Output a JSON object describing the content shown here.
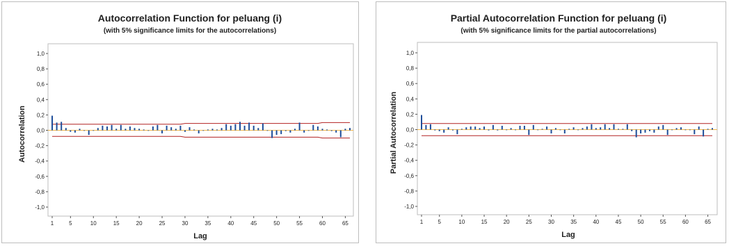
{
  "colors": {
    "bar": "#1f4e9a",
    "limit": "#b22222",
    "zero": "#f2b84b",
    "frame": "#bdbdbd"
  },
  "chart_data": [
    {
      "type": "bar",
      "title": "Autocorrelation Function for peluang (i)",
      "subtitle": "(with 5% significance limits for the autocorrelations)",
      "xlabel": "Lag",
      "ylabel": "Autocorrelation",
      "ylim": [
        -1.0,
        1.0
      ],
      "xlim": [
        1,
        66
      ],
      "y_ticks": [
        "-1,0",
        "-0,8",
        "-0,6",
        "-0,4",
        "-0,2",
        "0,0",
        "0,2",
        "0,4",
        "0,6",
        "0,8",
        "1,0"
      ],
      "x_ticks": [
        "1",
        "5",
        "10",
        "15",
        "20",
        "25",
        "30",
        "35",
        "40",
        "45",
        "50",
        "55",
        "60",
        "65"
      ],
      "lags": [
        1,
        2,
        3,
        4,
        5,
        6,
        7,
        8,
        9,
        10,
        11,
        12,
        13,
        14,
        15,
        16,
        17,
        18,
        19,
        20,
        21,
        22,
        23,
        24,
        25,
        26,
        27,
        28,
        29,
        30,
        31,
        32,
        33,
        34,
        35,
        36,
        37,
        38,
        39,
        40,
        41,
        42,
        43,
        44,
        45,
        46,
        47,
        48,
        49,
        50,
        51,
        52,
        53,
        54,
        55,
        56,
        57,
        58,
        59,
        60,
        61,
        62,
        63,
        64,
        65,
        66
      ],
      "values": [
        0.19,
        0.1,
        0.11,
        0.03,
        -0.02,
        -0.03,
        0.02,
        0.0,
        -0.06,
        0.0,
        0.03,
        0.06,
        0.05,
        0.07,
        0.02,
        0.07,
        0.02,
        0.05,
        0.03,
        0.02,
        0.01,
        0.0,
        0.05,
        0.07,
        -0.04,
        0.06,
        0.04,
        0.02,
        0.06,
        -0.02,
        0.04,
        0.01,
        -0.04,
        0.0,
        0.01,
        0.02,
        0.01,
        0.03,
        0.08,
        0.06,
        0.08,
        0.11,
        0.06,
        0.1,
        0.06,
        0.03,
        0.09,
        0.0,
        -0.1,
        -0.06,
        -0.05,
        -0.01,
        -0.03,
        0.02,
        0.1,
        -0.03,
        0.0,
        0.07,
        0.05,
        0.02,
        0.01,
        -0.01,
        -0.03,
        -0.09,
        0.02,
        0.03
      ],
      "upper_limit": [
        0.08,
        0.08,
        0.08,
        0.08,
        0.08,
        0.08,
        0.08,
        0.08,
        0.08,
        0.08,
        0.08,
        0.08,
        0.08,
        0.08,
        0.08,
        0.08,
        0.08,
        0.08,
        0.08,
        0.08,
        0.08,
        0.08,
        0.08,
        0.08,
        0.08,
        0.08,
        0.08,
        0.08,
        0.08,
        0.09,
        0.09,
        0.09,
        0.09,
        0.09,
        0.09,
        0.09,
        0.09,
        0.09,
        0.09,
        0.09,
        0.09,
        0.09,
        0.09,
        0.09,
        0.09,
        0.09,
        0.09,
        0.09,
        0.09,
        0.09,
        0.09,
        0.09,
        0.09,
        0.09,
        0.09,
        0.09,
        0.09,
        0.09,
        0.09,
        0.1,
        0.1,
        0.1,
        0.1,
        0.1,
        0.1,
        0.1
      ],
      "lower_limit": [
        -0.08,
        -0.08,
        -0.08,
        -0.08,
        -0.08,
        -0.08,
        -0.08,
        -0.08,
        -0.08,
        -0.08,
        -0.08,
        -0.08,
        -0.08,
        -0.08,
        -0.08,
        -0.08,
        -0.08,
        -0.08,
        -0.08,
        -0.08,
        -0.08,
        -0.08,
        -0.08,
        -0.08,
        -0.08,
        -0.08,
        -0.08,
        -0.08,
        -0.08,
        -0.09,
        -0.09,
        -0.09,
        -0.09,
        -0.09,
        -0.09,
        -0.09,
        -0.09,
        -0.09,
        -0.09,
        -0.09,
        -0.09,
        -0.09,
        -0.09,
        -0.09,
        -0.09,
        -0.09,
        -0.09,
        -0.09,
        -0.09,
        -0.09,
        -0.09,
        -0.09,
        -0.09,
        -0.09,
        -0.09,
        -0.09,
        -0.09,
        -0.09,
        -0.09,
        -0.1,
        -0.1,
        -0.1,
        -0.1,
        -0.1,
        -0.1,
        -0.1
      ],
      "grid": false,
      "legend": "none"
    },
    {
      "type": "bar",
      "title": "Partial Autocorrelation Function for peluang (i)",
      "subtitle": "(with 5% significance limits for the partial autocorrelations)",
      "xlabel": "Lag",
      "ylabel": "Partial Autocorrelation",
      "ylim": [
        -1.0,
        1.0
      ],
      "xlim": [
        1,
        66
      ],
      "y_ticks": [
        "-1,0",
        "-0,8",
        "-0,6",
        "-0,4",
        "-0,2",
        "0,0",
        "0,2",
        "0,4",
        "0,6",
        "0,8",
        "1,0"
      ],
      "x_ticks": [
        "1",
        "5",
        "10",
        "15",
        "20",
        "25",
        "30",
        "35",
        "40",
        "45",
        "50",
        "55",
        "60",
        "65"
      ],
      "lags": [
        1,
        2,
        3,
        4,
        5,
        6,
        7,
        8,
        9,
        10,
        11,
        12,
        13,
        14,
        15,
        16,
        17,
        18,
        19,
        20,
        21,
        22,
        23,
        24,
        25,
        26,
        27,
        28,
        29,
        30,
        31,
        32,
        33,
        34,
        35,
        36,
        37,
        38,
        39,
        40,
        41,
        42,
        43,
        44,
        45,
        46,
        47,
        48,
        49,
        50,
        51,
        52,
        53,
        54,
        55,
        56,
        57,
        58,
        59,
        60,
        61,
        62,
        63,
        64,
        65,
        66
      ],
      "values": [
        0.19,
        0.06,
        0.07,
        -0.01,
        -0.02,
        -0.04,
        0.03,
        -0.01,
        -0.06,
        0.01,
        0.03,
        0.04,
        0.04,
        0.02,
        0.04,
        -0.01,
        0.06,
        -0.01,
        0.05,
        0.0,
        0.02,
        0.0,
        0.05,
        0.05,
        -0.07,
        0.06,
        0.0,
        0.01,
        0.04,
        -0.05,
        0.02,
        0.0,
        -0.05,
        0.01,
        0.03,
        0.0,
        0.02,
        0.04,
        0.07,
        0.02,
        0.03,
        0.07,
        0.02,
        0.07,
        0.01,
        0.01,
        0.07,
        -0.02,
        -0.1,
        -0.05,
        -0.04,
        -0.02,
        -0.04,
        0.04,
        0.06,
        -0.07,
        0.0,
        0.02,
        0.03,
        0.0,
        0.0,
        -0.06,
        0.04,
        -0.09,
        0.01,
        0.02
      ],
      "upper_limit": [
        0.08,
        0.08,
        0.08,
        0.08,
        0.08,
        0.08,
        0.08,
        0.08,
        0.08,
        0.08,
        0.08,
        0.08,
        0.08,
        0.08,
        0.08,
        0.08,
        0.08,
        0.08,
        0.08,
        0.08,
        0.08,
        0.08,
        0.08,
        0.08,
        0.08,
        0.08,
        0.08,
        0.08,
        0.08,
        0.08,
        0.08,
        0.08,
        0.08,
        0.08,
        0.08,
        0.08,
        0.08,
        0.08,
        0.08,
        0.08,
        0.08,
        0.08,
        0.08,
        0.08,
        0.08,
        0.08,
        0.08,
        0.08,
        0.08,
        0.08,
        0.08,
        0.08,
        0.08,
        0.08,
        0.08,
        0.08,
        0.08,
        0.08,
        0.08,
        0.08,
        0.08,
        0.08,
        0.08,
        0.08,
        0.08,
        0.08
      ],
      "lower_limit": [
        -0.08,
        -0.08,
        -0.08,
        -0.08,
        -0.08,
        -0.08,
        -0.08,
        -0.08,
        -0.08,
        -0.08,
        -0.08,
        -0.08,
        -0.08,
        -0.08,
        -0.08,
        -0.08,
        -0.08,
        -0.08,
        -0.08,
        -0.08,
        -0.08,
        -0.08,
        -0.08,
        -0.08,
        -0.08,
        -0.08,
        -0.08,
        -0.08,
        -0.08,
        -0.08,
        -0.08,
        -0.08,
        -0.08,
        -0.08,
        -0.08,
        -0.08,
        -0.08,
        -0.08,
        -0.08,
        -0.08,
        -0.08,
        -0.08,
        -0.08,
        -0.08,
        -0.08,
        -0.08,
        -0.08,
        -0.08,
        -0.08,
        -0.08,
        -0.08,
        -0.08,
        -0.08,
        -0.08,
        -0.08,
        -0.08,
        -0.08,
        -0.08,
        -0.08,
        -0.08,
        -0.08,
        -0.08,
        -0.08,
        -0.08,
        -0.08,
        -0.08
      ],
      "grid": false,
      "legend": "none"
    }
  ]
}
